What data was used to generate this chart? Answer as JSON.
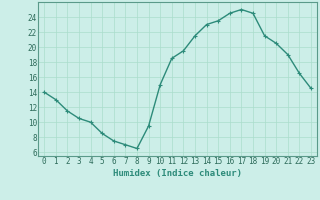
{
  "x": [
    0,
    1,
    2,
    3,
    4,
    5,
    6,
    7,
    8,
    9,
    10,
    11,
    12,
    13,
    14,
    15,
    16,
    17,
    18,
    19,
    20,
    21,
    22,
    23
  ],
  "y": [
    14,
    13,
    11.5,
    10.5,
    10,
    8.5,
    7.5,
    7,
    6.5,
    9.5,
    15,
    18.5,
    19.5,
    21.5,
    23,
    23.5,
    24.5,
    25,
    24.5,
    21.5,
    20.5,
    19,
    16.5,
    14.5
  ],
  "line_color": "#2d8b7a",
  "marker": "+",
  "bg_color": "#cceee8",
  "grid_color": "#aaddcc",
  "xlabel": "Humidex (Indice chaleur)",
  "ylim": [
    5.5,
    26
  ],
  "xlim": [
    -0.5,
    23.5
  ],
  "yticks": [
    6,
    8,
    10,
    12,
    14,
    16,
    18,
    20,
    22,
    24
  ],
  "xticks": [
    0,
    1,
    2,
    3,
    4,
    5,
    6,
    7,
    8,
    9,
    10,
    11,
    12,
    13,
    14,
    15,
    16,
    17,
    18,
    19,
    20,
    21,
    22,
    23
  ],
  "label_fontsize": 6.5,
  "tick_fontsize": 5.5,
  "line_width": 1.0,
  "marker_size": 3,
  "marker_edge_width": 0.8
}
